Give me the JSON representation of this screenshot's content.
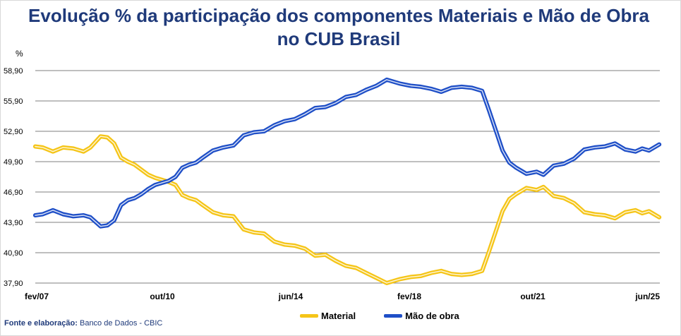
{
  "title": "Evolução % da participação dos componentes Materiais e Mão de Obra no CUB Brasil",
  "source_label": "Fonte e elaboração:",
  "source_value": "Banco de Dados - CBIC",
  "colors": {
    "material": "#f5c518",
    "labor": "#1f4fc7",
    "title": "#1f3a7a"
  },
  "chart_data": {
    "type": "line",
    "title": "Evolução % da participação dos componentes Materiais e Mão de Obra no CUB Brasil",
    "ylabel": "%",
    "xlabel": "",
    "ylim": [
      37.9,
      58.9
    ],
    "yticks": [
      "58,90",
      "55,90",
      "52,90",
      "49,90",
      "46,90",
      "43,90",
      "40,90",
      "37,90"
    ],
    "xticks": [
      "fev/07",
      "out/10",
      "jun/14",
      "fev/18",
      "out/21",
      "jun/25"
    ],
    "xrange": [
      2007.083,
      2025.417
    ],
    "grid": true,
    "legend": "bottom-center",
    "series": [
      {
        "name": "Material",
        "color": "#f5c518",
        "x": [
          2007.08,
          2007.3,
          2007.6,
          2007.9,
          2008.2,
          2008.5,
          2008.7,
          2009.0,
          2009.2,
          2009.4,
          2009.6,
          2009.8,
          2010.0,
          2010.2,
          2010.4,
          2010.6,
          2010.8,
          2011.0,
          2011.2,
          2011.4,
          2011.6,
          2011.8,
          2012.0,
          2012.3,
          2012.6,
          2012.9,
          2013.2,
          2013.5,
          2013.8,
          2014.1,
          2014.4,
          2014.7,
          2015.0,
          2015.3,
          2015.6,
          2015.9,
          2016.2,
          2016.5,
          2016.8,
          2017.1,
          2017.4,
          2017.6,
          2017.8,
          2018.1,
          2018.4,
          2018.7,
          2019.0,
          2019.3,
          2019.6,
          2019.9,
          2020.2,
          2020.4,
          2020.6,
          2020.8,
          2021.0,
          2021.2,
          2021.5,
          2021.8,
          2022.0,
          2022.3,
          2022.6,
          2022.9,
          2023.2,
          2023.5,
          2023.8,
          2024.1,
          2024.4,
          2024.7,
          2024.9,
          2025.1,
          2025.4
        ],
        "values": [
          51.4,
          51.3,
          50.9,
          51.3,
          51.2,
          50.9,
          51.3,
          52.4,
          52.3,
          51.7,
          50.3,
          49.9,
          49.6,
          49.1,
          48.6,
          48.3,
          48.1,
          47.9,
          47.6,
          46.6,
          46.3,
          46.1,
          45.6,
          44.9,
          44.6,
          44.5,
          43.2,
          42.9,
          42.8,
          42.0,
          41.7,
          41.6,
          41.3,
          40.6,
          40.7,
          40.1,
          39.6,
          39.4,
          38.9,
          38.4,
          37.9,
          38.1,
          38.3,
          38.5,
          38.6,
          38.9,
          39.1,
          38.8,
          38.7,
          38.8,
          39.1,
          41.0,
          43.0,
          45.0,
          46.2,
          46.7,
          47.3,
          47.1,
          47.4,
          46.5,
          46.3,
          45.8,
          44.9,
          44.7,
          44.6,
          44.3,
          44.9,
          45.1,
          44.8,
          45.0,
          44.4
        ]
      },
      {
        "name": "Mão de obra",
        "color": "#1f4fc7",
        "x": [
          2007.08,
          2007.3,
          2007.6,
          2007.9,
          2008.2,
          2008.5,
          2008.7,
          2009.0,
          2009.2,
          2009.4,
          2009.6,
          2009.8,
          2010.0,
          2010.2,
          2010.4,
          2010.6,
          2010.8,
          2011.0,
          2011.2,
          2011.4,
          2011.6,
          2011.8,
          2012.0,
          2012.3,
          2012.6,
          2012.9,
          2013.2,
          2013.5,
          2013.8,
          2014.1,
          2014.4,
          2014.7,
          2015.0,
          2015.3,
          2015.6,
          2015.9,
          2016.2,
          2016.5,
          2016.8,
          2017.1,
          2017.4,
          2017.6,
          2017.8,
          2018.1,
          2018.4,
          2018.7,
          2019.0,
          2019.3,
          2019.6,
          2019.9,
          2020.2,
          2020.4,
          2020.6,
          2020.8,
          2021.0,
          2021.2,
          2021.5,
          2021.8,
          2022.0,
          2022.3,
          2022.6,
          2022.9,
          2023.2,
          2023.5,
          2023.8,
          2024.1,
          2024.4,
          2024.7,
          2024.9,
          2025.1,
          2025.4
        ],
        "values": [
          44.6,
          44.7,
          45.1,
          44.7,
          44.5,
          44.6,
          44.4,
          43.5,
          43.6,
          44.1,
          45.6,
          46.1,
          46.3,
          46.7,
          47.2,
          47.6,
          47.8,
          48.0,
          48.4,
          49.3,
          49.6,
          49.8,
          50.3,
          51.0,
          51.3,
          51.5,
          52.5,
          52.8,
          52.9,
          53.5,
          53.9,
          54.1,
          54.6,
          55.2,
          55.3,
          55.7,
          56.3,
          56.5,
          57.0,
          57.4,
          58.0,
          57.8,
          57.6,
          57.4,
          57.3,
          57.1,
          56.8,
          57.2,
          57.3,
          57.2,
          56.9,
          55.0,
          53.0,
          51.0,
          49.8,
          49.3,
          48.7,
          48.9,
          48.6,
          49.5,
          49.7,
          50.2,
          51.1,
          51.3,
          51.4,
          51.7,
          51.1,
          50.9,
          51.2,
          51.0,
          51.6
        ]
      }
    ]
  }
}
